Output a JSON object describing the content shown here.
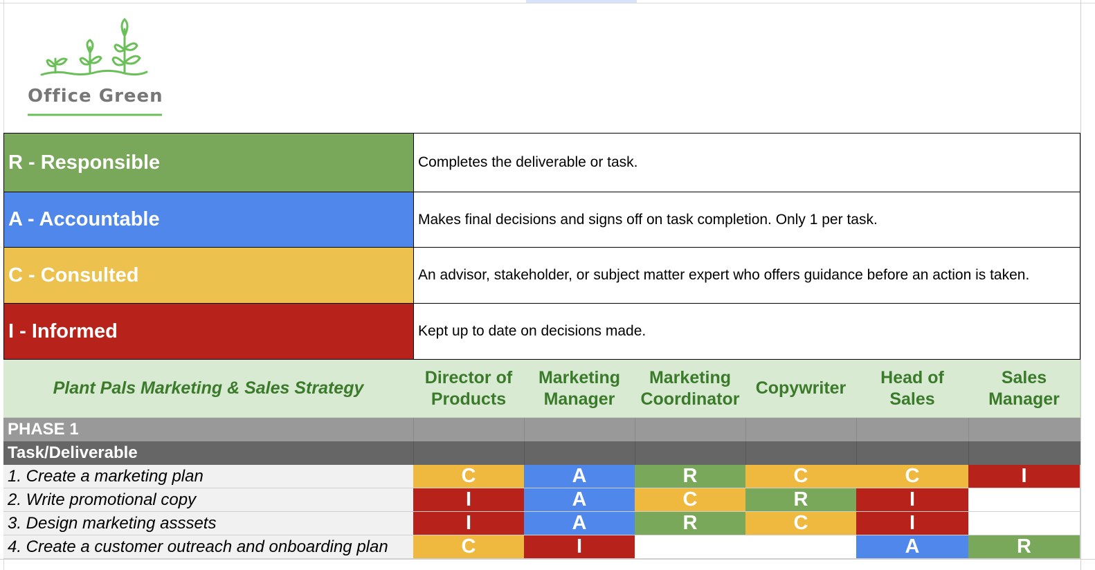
{
  "logo": {
    "text": "Office Green",
    "color": "#6bbf59",
    "text_color": "#777777"
  },
  "legend": [
    {
      "key": "R - Responsible",
      "desc": "Completes the deliverable or task.",
      "color": "#7aa85a"
    },
    {
      "key": "A - Accountable",
      "desc": "Makes final decisions and signs off on task completion. Only 1 per task.",
      "color": "#4f87ea"
    },
    {
      "key": "C - Consulted",
      "desc": "An advisor, stakeholder, or subject matter expert who offers guidance before an action is taken.",
      "color": "#ecc14d"
    },
    {
      "key": "I - Informed",
      "desc": "Kept up to date on decisions made.",
      "color": "#b7231b"
    }
  ],
  "project_title": "Plant Pals Marketing & Sales Strategy",
  "roles": [
    "Director of Products",
    "Marketing Manager",
    "Marketing Coordinator",
    "Copywriter",
    "Head of Sales",
    "Sales Manager"
  ],
  "phase_label": "PHASE 1",
  "task_header": "Task/Deliverable",
  "tasks": [
    {
      "name": "1. Create a marketing plan",
      "cells": [
        "C",
        "A",
        "R",
        "C",
        "C",
        "I"
      ]
    },
    {
      "name": "2. Write promotional copy",
      "cells": [
        "I",
        "A",
        "C",
        "R",
        "I",
        ""
      ]
    },
    {
      "name": "3. Design marketing asssets",
      "cells": [
        "I",
        "A",
        "R",
        "C",
        "I",
        ""
      ]
    },
    {
      "name": "4. Create a customer outreach and onboarding plan",
      "cells": [
        "C",
        "I",
        "",
        "",
        "A",
        "R"
      ]
    }
  ]
}
